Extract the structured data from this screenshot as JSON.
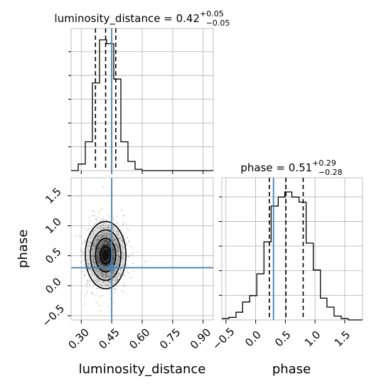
{
  "figure": {
    "top_title": {
      "main": "luminosity_distance = 0.42",
      "sup": "+0.05",
      "sub": "−0.05"
    },
    "right_title": {
      "main": "phase = 0.51",
      "sup": "+0.29",
      "sub": "−0.28"
    },
    "x_label_left": "luminosity_distance",
    "x_label_right": "phase",
    "y_label": "phase",
    "colors": {
      "truth": "#4682b4",
      "hist": "#000000",
      "grid": "#b0b0b0"
    }
  },
  "chart_data": [
    {
      "type": "histogram",
      "panel": "top-left",
      "title": "luminosity_distance = 0.42 (+0.05 / −0.05)",
      "xlim": [
        0.25,
        0.95
      ],
      "bin_edges": [
        0.25,
        0.285,
        0.32,
        0.355,
        0.39,
        0.425,
        0.46,
        0.495,
        0.53,
        0.565,
        0.6,
        0.635,
        0.67,
        0.705,
        0.74,
        0.775,
        0.81,
        0.845,
        0.88,
        0.915,
        0.95
      ],
      "counts": [
        0,
        0.05,
        0.22,
        0.67,
        1.0,
        0.97,
        0.7,
        0.22,
        0.07,
        0.01,
        0,
        0,
        0,
        0,
        0,
        0,
        0,
        0,
        0,
        0
      ],
      "quantiles": [
        0.37,
        0.42,
        0.47
      ],
      "truth": 0.45,
      "xticks": [
        0.3,
        0.45,
        0.6,
        0.75,
        0.9
      ]
    },
    {
      "type": "histogram",
      "panel": "bottom-right",
      "title": "phase = 0.51 (+0.29 / −0.28)",
      "xlim": [
        -0.57,
        1.8
      ],
      "bin_edges": [
        -0.57,
        -0.45,
        -0.33,
        -0.22,
        -0.1,
        0.02,
        0.14,
        0.26,
        0.38,
        0.49,
        0.61,
        0.73,
        0.85,
        0.97,
        1.09,
        1.2,
        1.32,
        1.44,
        1.56,
        1.68,
        1.8
      ],
      "counts": [
        0.01,
        0.02,
        0.06,
        0.14,
        0.19,
        0.36,
        0.61,
        0.89,
        0.96,
        1.0,
        0.96,
        0.92,
        0.6,
        0.39,
        0.17,
        0.1,
        0.03,
        0.01,
        0,
        0
      ],
      "quantiles": [
        0.23,
        0.51,
        0.8
      ],
      "truth": 0.3,
      "xticks": [
        "−0.5",
        "0.0",
        "0.5",
        "1.0",
        "1.5"
      ],
      "xlabel": "phase"
    },
    {
      "type": "scatter",
      "panel": "bottom-left",
      "subtype": "2d-density-contour",
      "xlabel": "luminosity_distance",
      "ylabel": "phase",
      "xlim": [
        0.25,
        0.95
      ],
      "ylim": [
        -0.57,
        1.8
      ],
      "xticks": [
        "0.30",
        "0.45",
        "0.60",
        "0.75",
        "0.90"
      ],
      "yticks": [
        "−0.5",
        "0.0",
        "0.5",
        "1.0",
        "1.5"
      ],
      "center": [
        0.42,
        0.51
      ],
      "spread": [
        0.05,
        0.28
      ],
      "truth": [
        0.45,
        0.3
      ],
      "contour_levels": [
        0.5,
        1.0,
        1.5,
        2.0
      ]
    }
  ]
}
